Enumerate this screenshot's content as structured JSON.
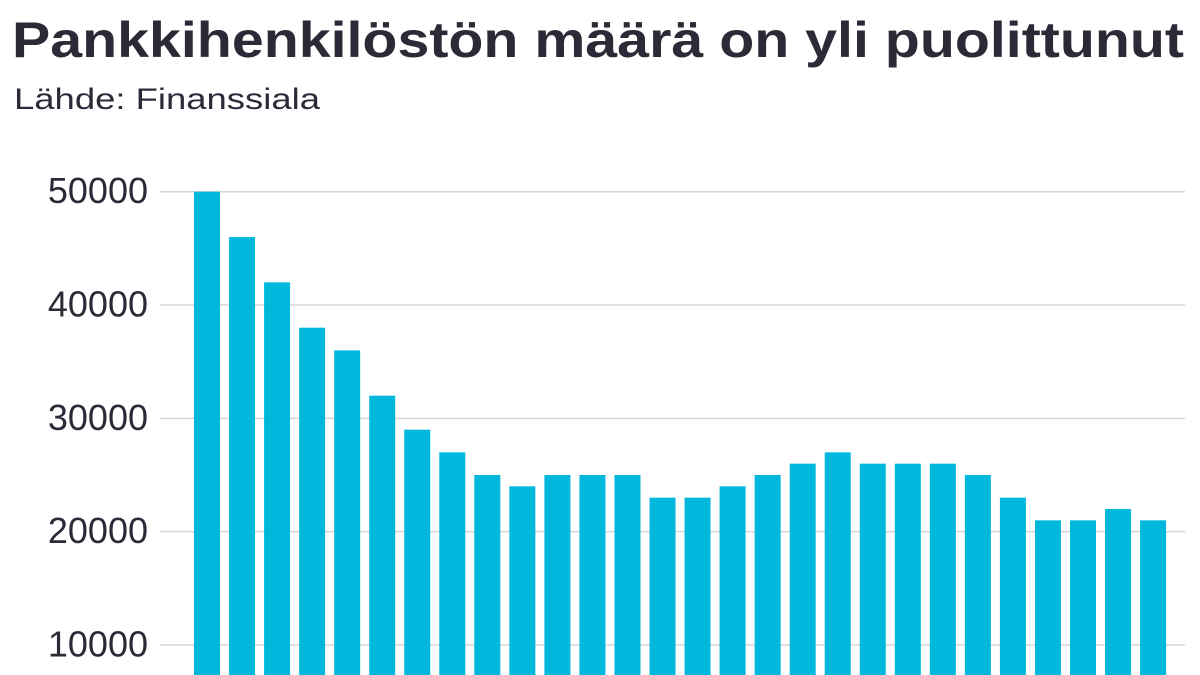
{
  "chart_data": {
    "type": "bar",
    "title": "Pankkihenkilöstön määrä on yli puolittunut",
    "subtitle": "Lähde: Finanssiala",
    "categories": [
      null,
      null,
      null,
      null,
      null,
      null,
      null,
      null,
      null,
      null,
      null,
      null,
      null,
      null,
      null,
      null,
      null,
      null,
      null,
      null,
      null,
      null,
      null,
      null,
      null,
      null,
      null,
      null
    ],
    "values": [
      50000,
      46000,
      42000,
      38000,
      36000,
      32000,
      29000,
      27000,
      25000,
      24000,
      25000,
      25000,
      25000,
      23000,
      23000,
      24000,
      25000,
      26000,
      27000,
      26000,
      26000,
      26000,
      25000,
      23000,
      21000,
      21000,
      22000,
      21000
    ],
    "color": "#00b8dc",
    "ylim": [
      7350,
      52800
    ],
    "yticks": [
      10000,
      20000,
      30000,
      40000,
      50000
    ],
    "grid": true
  }
}
